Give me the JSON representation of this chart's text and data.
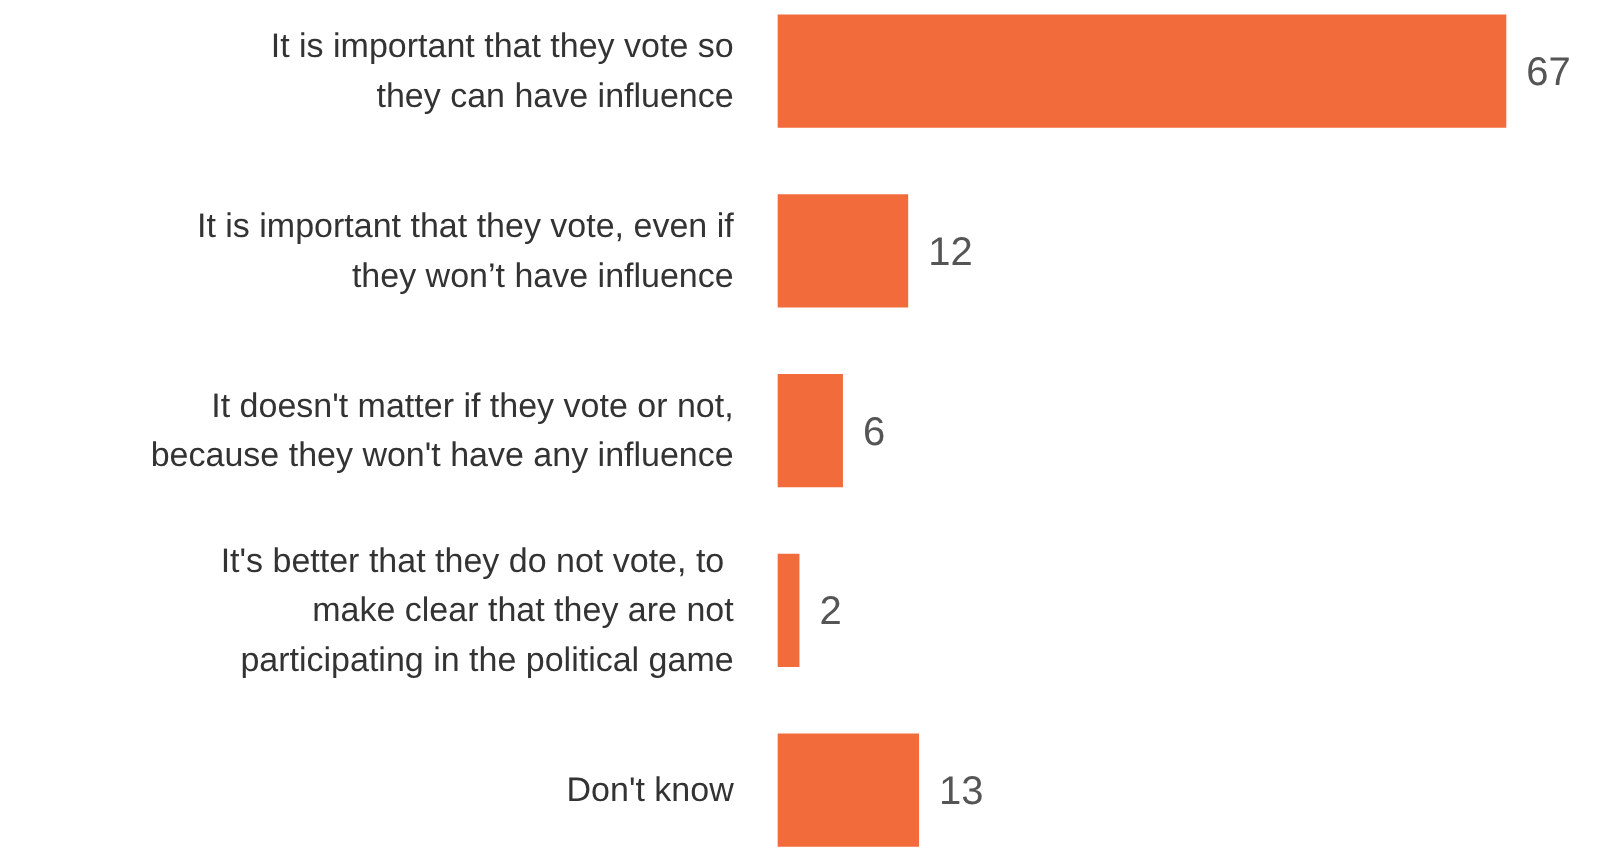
{
  "chart_data": {
    "type": "bar",
    "orientation": "horizontal",
    "categories": [
      "It is important that they vote so\nthey can have influence",
      "It is important that they vote, even if\nthey won’t have influence",
      "It doesn't matter if they vote or not,\nbecause they won't have any influence",
      "It's better that they  do not vote, to\nmake clear that they are not\nparticipating in the political game",
      "Don't know"
    ],
    "values": [
      67,
      12,
      6,
      2,
      13
    ],
    "color": "#f26b3a",
    "data_labels": true,
    "grid": false
  }
}
